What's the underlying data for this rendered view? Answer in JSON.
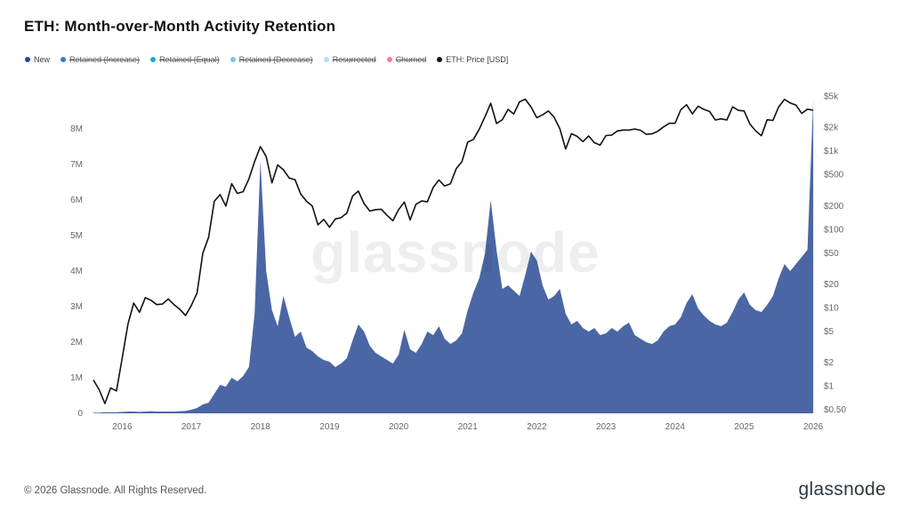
{
  "title": "ETH: Month-over-Month Activity Retention",
  "watermark": "glassnode",
  "footer": {
    "copyright": "© 2026 Glassnode. All Rights Reserved.",
    "brand": "glassnode"
  },
  "legend": [
    {
      "label": "New",
      "color": "#2b4590",
      "strikethrough": false
    },
    {
      "label": "Retained (Increase)",
      "color": "#2e7cd6",
      "strikethrough": true
    },
    {
      "label": "Retained (Equal)",
      "color": "#1ba7e0",
      "strikethrough": true
    },
    {
      "label": "Retained (Decrease)",
      "color": "#7cc4e8",
      "strikethrough": true
    },
    {
      "label": "Resurrected",
      "color": "#b5def0",
      "strikethrough": true
    },
    {
      "label": "Churned",
      "color": "#f27d93",
      "strikethrough": true
    },
    {
      "label": "ETH: Price [USD]",
      "color": "#111111",
      "strikethrough": false
    }
  ],
  "chart_data": {
    "type": "area",
    "title": "ETH: Month-over-Month Activity Retention",
    "grid": false,
    "x_start_year": 2015.5833,
    "x_step_years": 0.0833333,
    "x_ticks": [
      2016,
      2017,
      2018,
      2019,
      2020,
      2021,
      2022,
      2023,
      2024,
      2025,
      2026
    ],
    "left_axis": {
      "unit": "addresses (millions)",
      "ticks": [
        0,
        1,
        2,
        3,
        4,
        5,
        6,
        7,
        8
      ],
      "tick_labels": [
        "0",
        "1M",
        "2M",
        "3M",
        "4M",
        "5M",
        "6M",
        "7M",
        "8M"
      ],
      "range_top": 9
    },
    "right_axis": {
      "scale": "log",
      "unit": "USD",
      "ticks": [
        0.5,
        1,
        2,
        5,
        10,
        20,
        50,
        100,
        200,
        500,
        1000,
        2000,
        5000
      ],
      "tick_labels": [
        "$0.50",
        "$1",
        "$2",
        "$5",
        "$10",
        "$20",
        "$50",
        "$100",
        "$200",
        "$500",
        "$1k",
        "$2k",
        "$5k"
      ],
      "range": [
        0.45,
        5500
      ]
    },
    "series": [
      {
        "name": "New",
        "type": "area",
        "axis": "left",
        "color": "#4a66a4",
        "unit": "millions of addresses",
        "values": [
          0.02,
          0.02,
          0.03,
          0.03,
          0.03,
          0.04,
          0.05,
          0.05,
          0.04,
          0.05,
          0.06,
          0.05,
          0.05,
          0.05,
          0.05,
          0.06,
          0.07,
          0.1,
          0.15,
          0.25,
          0.3,
          0.55,
          0.8,
          0.75,
          1.0,
          0.9,
          1.05,
          1.3,
          2.8,
          7.1,
          4.0,
          2.9,
          2.45,
          3.3,
          2.7,
          2.15,
          2.3,
          1.85,
          1.75,
          1.6,
          1.5,
          1.45,
          1.3,
          1.4,
          1.55,
          2.05,
          2.5,
          2.3,
          1.9,
          1.7,
          1.6,
          1.5,
          1.4,
          1.65,
          2.35,
          1.8,
          1.7,
          1.95,
          2.3,
          2.2,
          2.45,
          2.1,
          1.95,
          2.05,
          2.25,
          2.9,
          3.4,
          3.8,
          4.5,
          6.0,
          4.6,
          3.5,
          3.6,
          3.45,
          3.3,
          3.9,
          4.55,
          4.3,
          3.6,
          3.2,
          3.3,
          3.5,
          2.8,
          2.5,
          2.6,
          2.4,
          2.3,
          2.4,
          2.2,
          2.25,
          2.4,
          2.3,
          2.45,
          2.55,
          2.2,
          2.1,
          2.0,
          1.95,
          2.05,
          2.3,
          2.45,
          2.5,
          2.7,
          3.1,
          3.35,
          2.95,
          2.75,
          2.6,
          2.5,
          2.45,
          2.55,
          2.85,
          3.2,
          3.4,
          3.05,
          2.9,
          2.85,
          3.05,
          3.3,
          3.8,
          4.2,
          4.0,
          4.2,
          4.4,
          4.6,
          8.8
        ]
      },
      {
        "name": "ETH: Price [USD]",
        "type": "line",
        "axis": "right",
        "color": "#111111",
        "unit": "USD",
        "values": [
          1.2,
          0.9,
          0.6,
          0.95,
          0.87,
          2.3,
          6.2,
          11.5,
          8.8,
          13.5,
          12.5,
          11.0,
          11.2,
          13.0,
          11.0,
          9.6,
          8.0,
          10.7,
          15.5,
          50,
          80,
          230,
          280,
          200,
          385,
          290,
          305,
          445,
          740,
          1150,
          855,
          395,
          670,
          580,
          455,
          435,
          285,
          230,
          200,
          115,
          135,
          107,
          137,
          142,
          162,
          268,
          310,
          215,
          172,
          180,
          182,
          152,
          130,
          180,
          225,
          133,
          210,
          232,
          226,
          345,
          430,
          360,
          385,
          600,
          740,
          1310,
          1420,
          1920,
          2770,
          4100,
          2270,
          2530,
          3430,
          3000,
          4290,
          4630,
          3680,
          2690,
          2920,
          3280,
          2730,
          1940,
          1070,
          1680,
          1550,
          1330,
          1570,
          1290,
          1200,
          1590,
          1610,
          1820,
          1870,
          1870,
          1930,
          1860,
          1650,
          1670,
          1800,
          2050,
          2280,
          2280,
          3390,
          3940,
          3010,
          3760,
          3440,
          3230,
          2510,
          2600,
          2510,
          3700,
          3330,
          3280,
          2230,
          1820,
          1580,
          2530,
          2480,
          3700,
          4600,
          4150,
          3900,
          3050,
          3450,
          3350
        ]
      }
    ]
  }
}
